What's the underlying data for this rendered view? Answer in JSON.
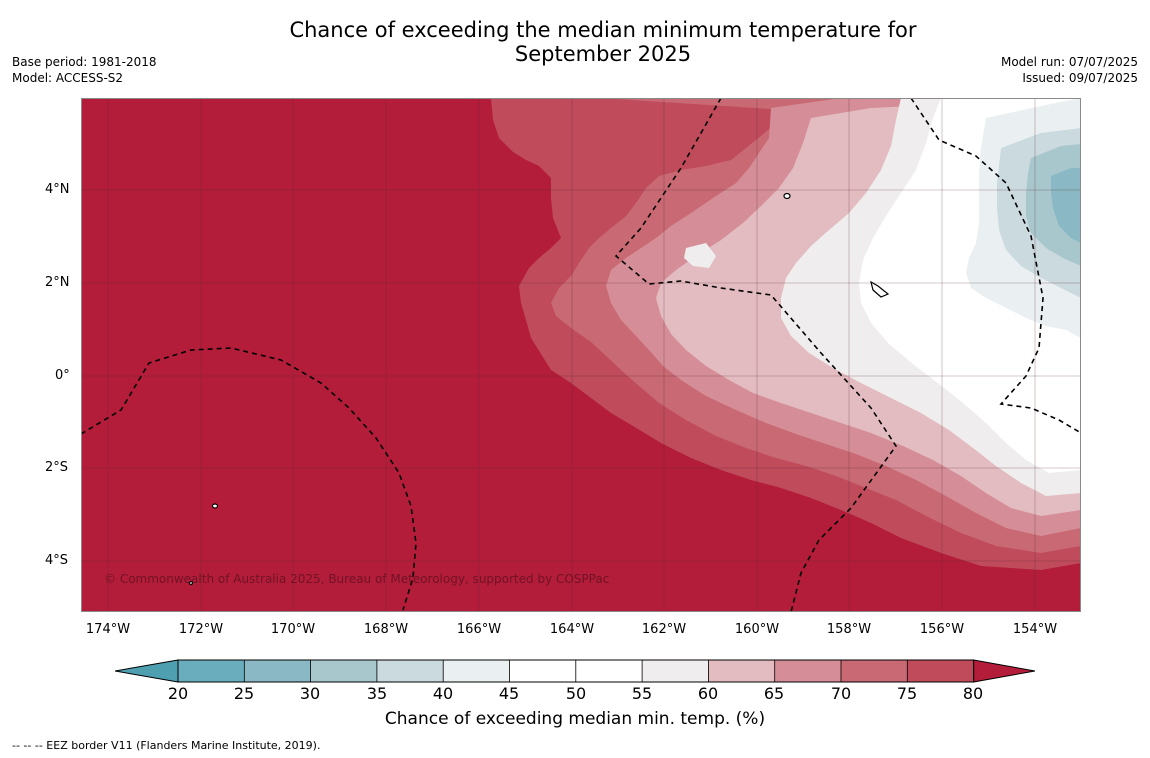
{
  "header": {
    "title_line1": "Chance of exceeding the median minimum temperature for",
    "title_line2": "September 2025",
    "base_period": "Base period: 1981-2018",
    "model": "Model: ACCESS-S2",
    "model_run": "Model run: 07/07/2025",
    "issued": "Issued: 09/07/2025"
  },
  "map": {
    "lon_labels": [
      "174°W",
      "172°W",
      "170°W",
      "168°W",
      "166°W",
      "164°W",
      "162°W",
      "160°W",
      "158°W",
      "156°W",
      "154°W"
    ],
    "lat_labels": [
      "4°N",
      "2°N",
      "0°",
      "2°S",
      "4°S"
    ],
    "copyright": "© Commonwealth of Australia 2025, Bureau of Meteorology, supported by COSPPac"
  },
  "colorbar": {
    "ticks": [
      "20",
      "25",
      "30",
      "35",
      "40",
      "45",
      "50",
      "55",
      "60",
      "65",
      "70",
      "75",
      "80"
    ],
    "colors": [
      "#4e9fb0",
      "#6aaebd",
      "#8ab8c4",
      "#a8c7cd",
      "#cadadf",
      "#eaf0f1",
      "#ffffff",
      "#ffffff",
      "#efeded",
      "#e3bcc1",
      "#d58e97",
      "#c96973",
      "#bf4b5b",
      "#b31d3a"
    ],
    "label": "Chance of exceeding median min. temp. (%)"
  },
  "footnote": "--  --  -- EEZ border V11 (Flanders Marine Institute, 2019)."
}
